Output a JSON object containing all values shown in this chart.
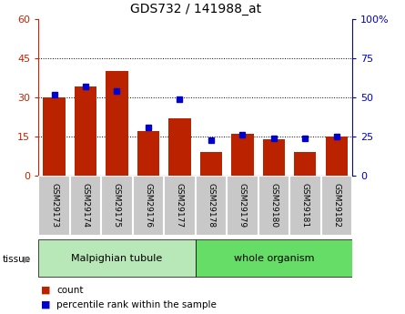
{
  "title": "GDS732 / 141988_at",
  "samples": [
    "GSM29173",
    "GSM29174",
    "GSM29175",
    "GSM29176",
    "GSM29177",
    "GSM29178",
    "GSM29179",
    "GSM29180",
    "GSM29181",
    "GSM29182"
  ],
  "count_values": [
    30,
    34,
    40,
    17,
    22,
    9,
    16,
    14,
    9,
    15
  ],
  "percentile_values": [
    52,
    57,
    54,
    31,
    49,
    23,
    26,
    24,
    24,
    25
  ],
  "tissue_groups": [
    {
      "label": "Malpighian tubule",
      "start": 0,
      "end": 4,
      "color": "#b8e8b8"
    },
    {
      "label": "whole organism",
      "start": 5,
      "end": 9,
      "color": "#66dd66"
    }
  ],
  "left_ylim": [
    0,
    60
  ],
  "right_ylim": [
    0,
    100
  ],
  "left_yticks": [
    0,
    15,
    30,
    45,
    60
  ],
  "right_yticks": [
    0,
    25,
    50,
    75,
    100
  ],
  "left_ycolor": "#cc2200",
  "right_ycolor": "#0000cc",
  "bar_color": "#bb2200",
  "dot_color": "#0000cc",
  "dot_size": 4,
  "grid_yticks": [
    15,
    30,
    45
  ],
  "tick_label_area_color": "#c8c8c8",
  "tick_border_color": "#ffffff",
  "legend_count_color": "#bb2200",
  "legend_pct_color": "#0000cc"
}
